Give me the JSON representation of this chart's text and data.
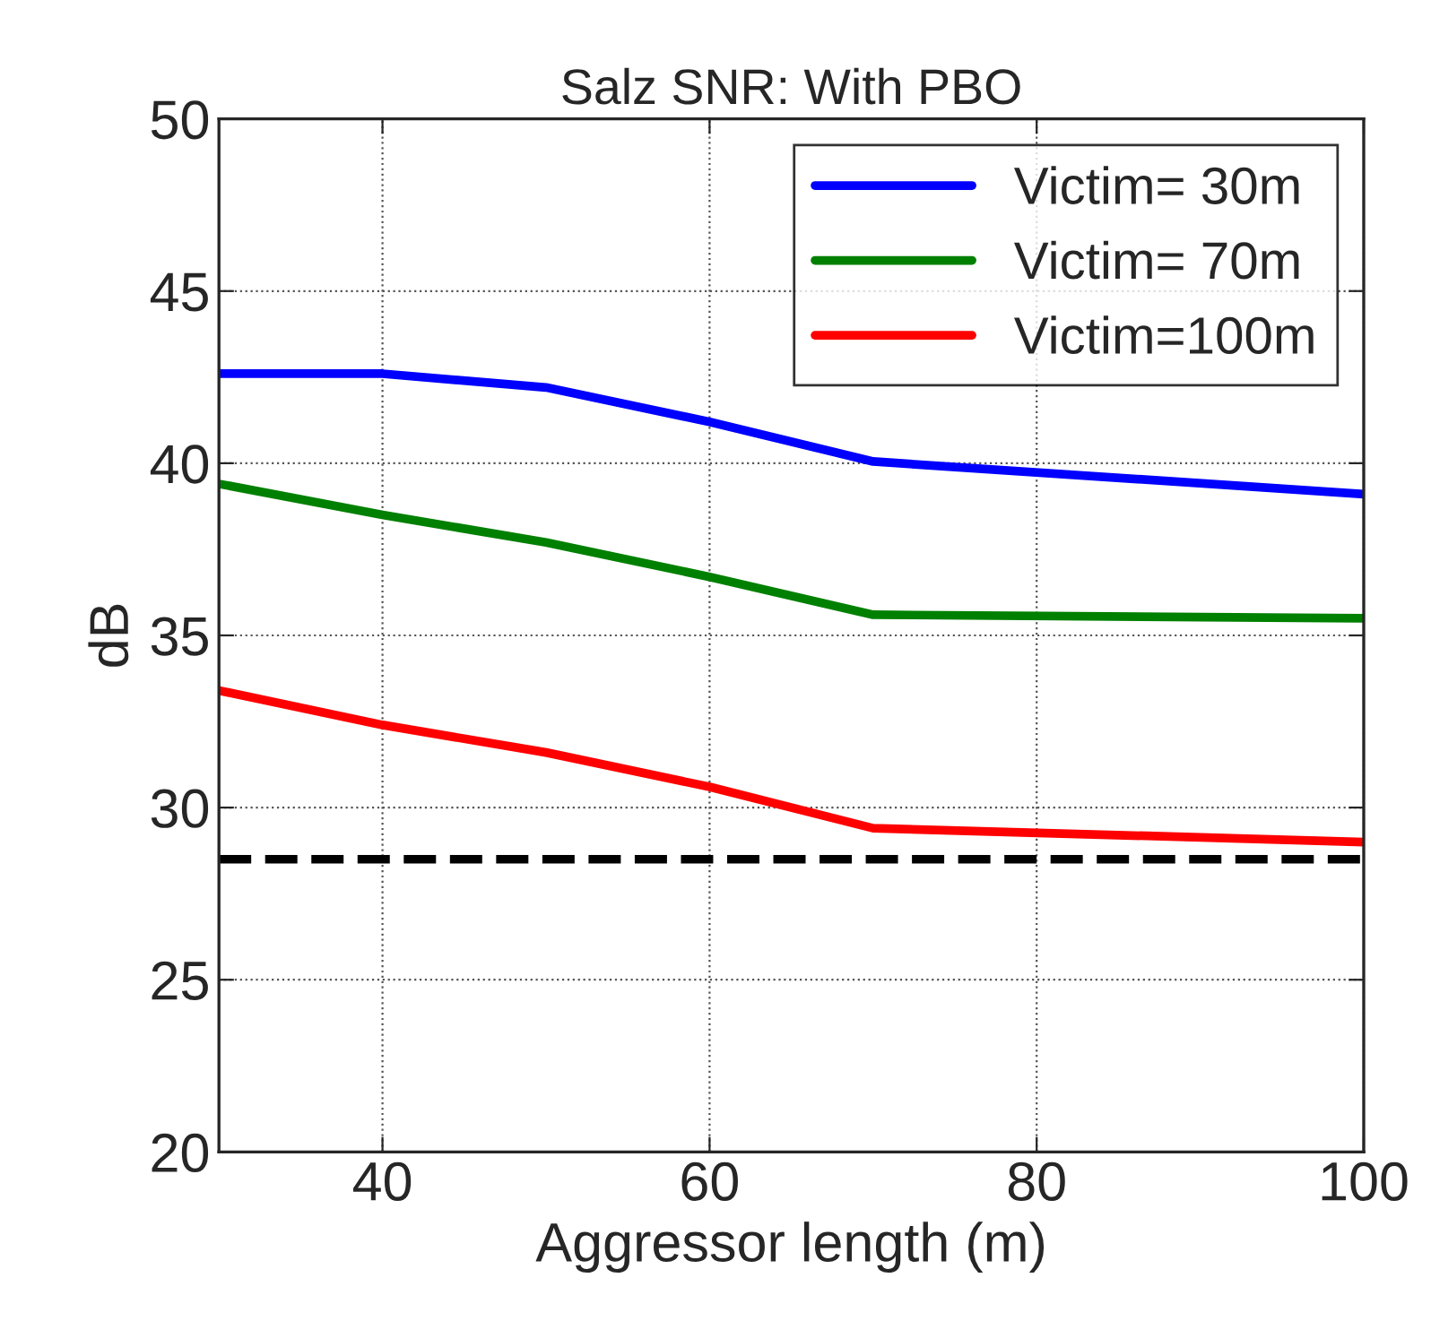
{
  "chart_data": {
    "type": "line",
    "title": "Salz SNR: With PBO",
    "xlabel": "Aggressor length (m)",
    "ylabel": "dB",
    "x": [
      30,
      40,
      50,
      60,
      70,
      100
    ],
    "series": [
      {
        "name": "Victim= 30m",
        "color": "#0000ff",
        "values": [
          42.6,
          42.6,
          42.2,
          41.2,
          40.05,
          39.1
        ]
      },
      {
        "name": "Victim= 70m",
        "color": "#008000",
        "values": [
          39.4,
          38.5,
          37.7,
          36.7,
          35.6,
          35.5
        ]
      },
      {
        "name": "Victim=100m",
        "color": "#ff0000",
        "values": [
          33.4,
          32.4,
          31.6,
          30.6,
          29.4,
          29.0
        ]
      }
    ],
    "ref_lines": [
      {
        "axis": "y",
        "value": 28.5,
        "color": "#000000",
        "line_style": "dashed"
      }
    ],
    "xlim": [
      30,
      100
    ],
    "xticks": [
      40,
      60,
      80,
      100
    ],
    "ylim": [
      20,
      50
    ],
    "yticks": [
      20,
      25,
      30,
      35,
      40,
      45,
      50
    ],
    "grid": true,
    "legend": "top right",
    "line_style": "solid"
  }
}
